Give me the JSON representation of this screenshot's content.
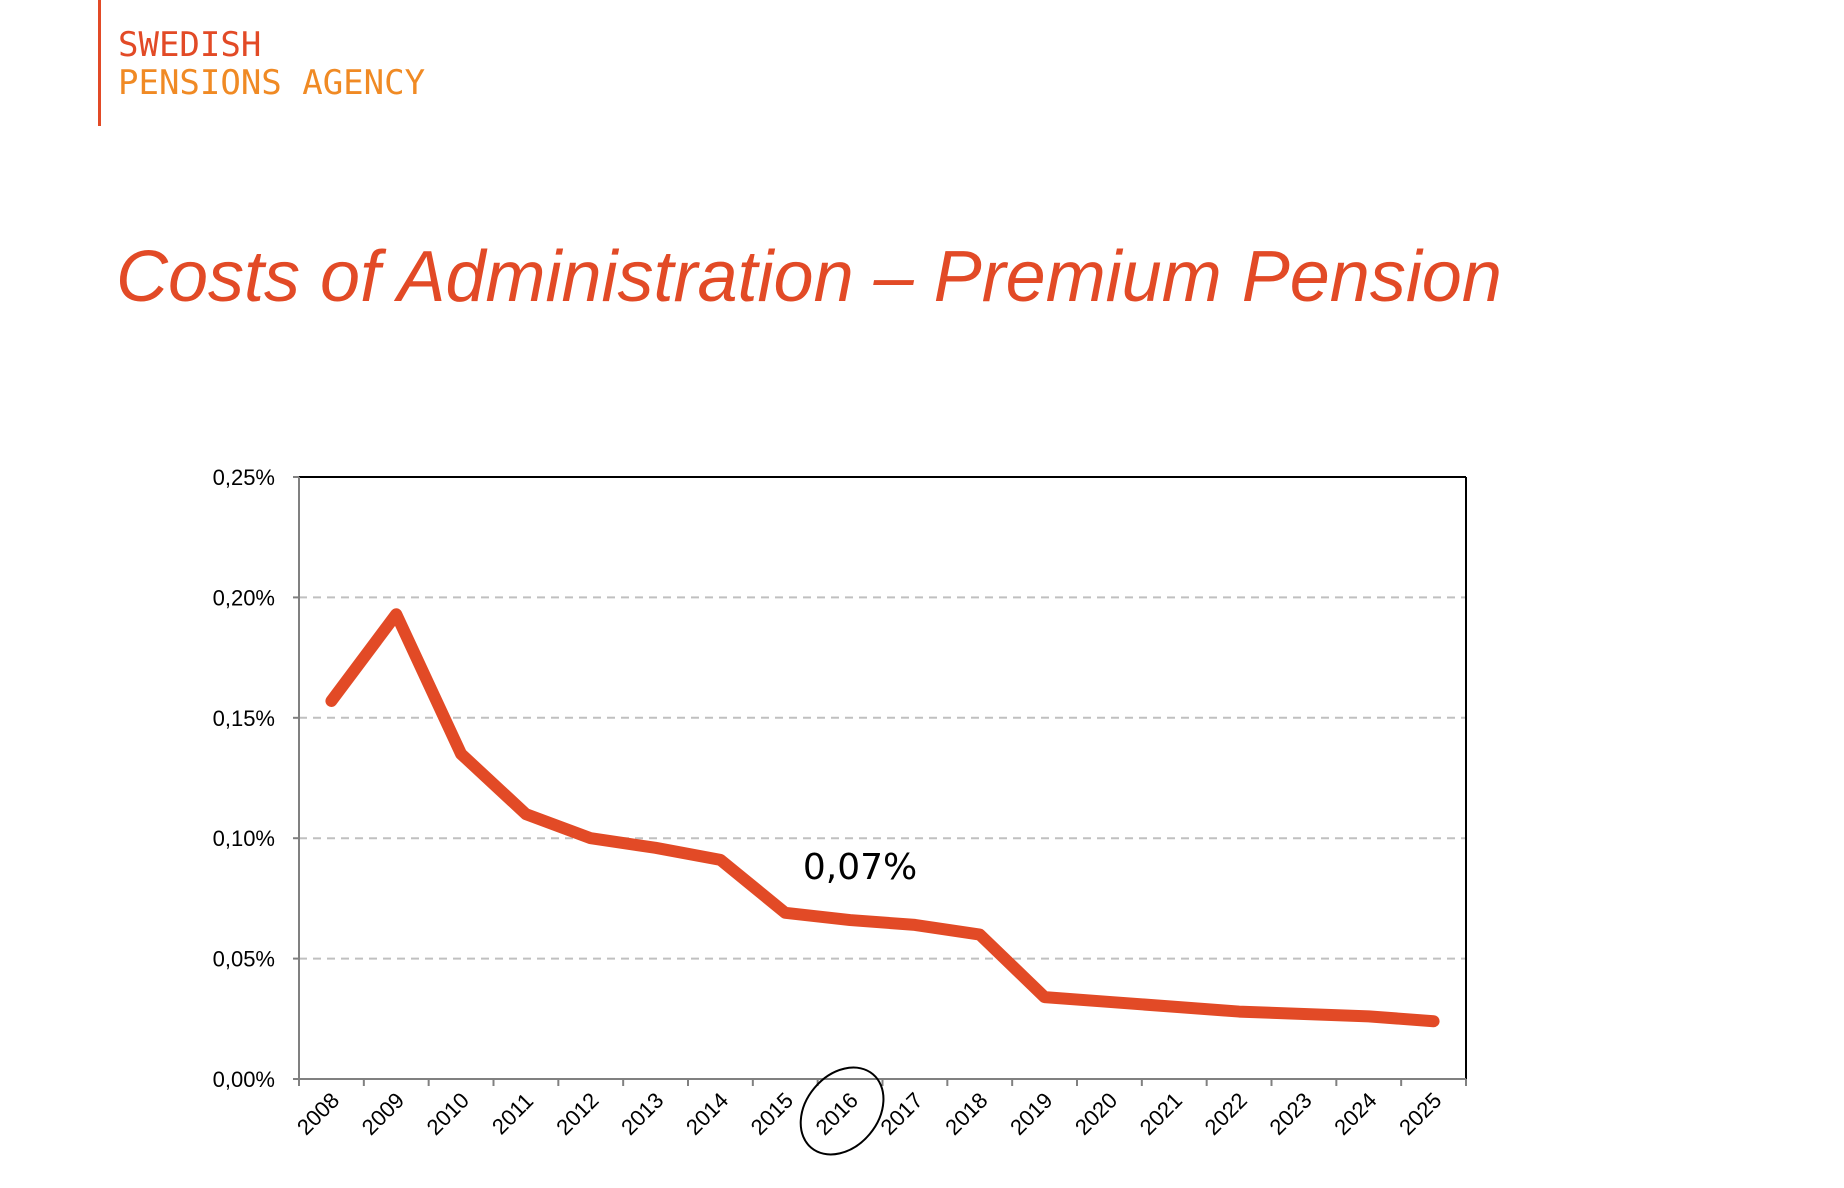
{
  "logo": {
    "line1": "SWEDISH",
    "line2": "PENSIONS AGENCY"
  },
  "title": "Costs of Administration – Premium Pension",
  "colors": {
    "accent": "#e24a26",
    "logo_secondary": "#f08a24",
    "grid": "#c0c0c0"
  },
  "chart_data": {
    "type": "line",
    "title": "Costs of Administration – Premium Pension",
    "categories": [
      "2008",
      "2009",
      "2010",
      "2011",
      "2012",
      "2013",
      "2014",
      "2015",
      "2016",
      "2017",
      "2018",
      "2019",
      "2020",
      "2021",
      "2022",
      "2023",
      "2024",
      "2025"
    ],
    "values": [
      0.157,
      0.193,
      0.135,
      0.11,
      0.1,
      0.096,
      0.091,
      0.069,
      0.066,
      0.064,
      0.06,
      0.034,
      0.032,
      0.03,
      0.028,
      0.027,
      0.026,
      0.024
    ],
    "ylim": [
      0,
      0.25
    ],
    "yticks": [
      0,
      0.05,
      0.1,
      0.15,
      0.2,
      0.25
    ],
    "ytick_labels": [
      "0,00%",
      "0,05%",
      "0,10%",
      "0,15%",
      "0,20%",
      "0,25%"
    ],
    "grid": "horizontal dashed",
    "line_color": "#e24a26",
    "annotation": {
      "text": "0,07%",
      "category": "2016"
    },
    "highlighted_category": "2016"
  }
}
